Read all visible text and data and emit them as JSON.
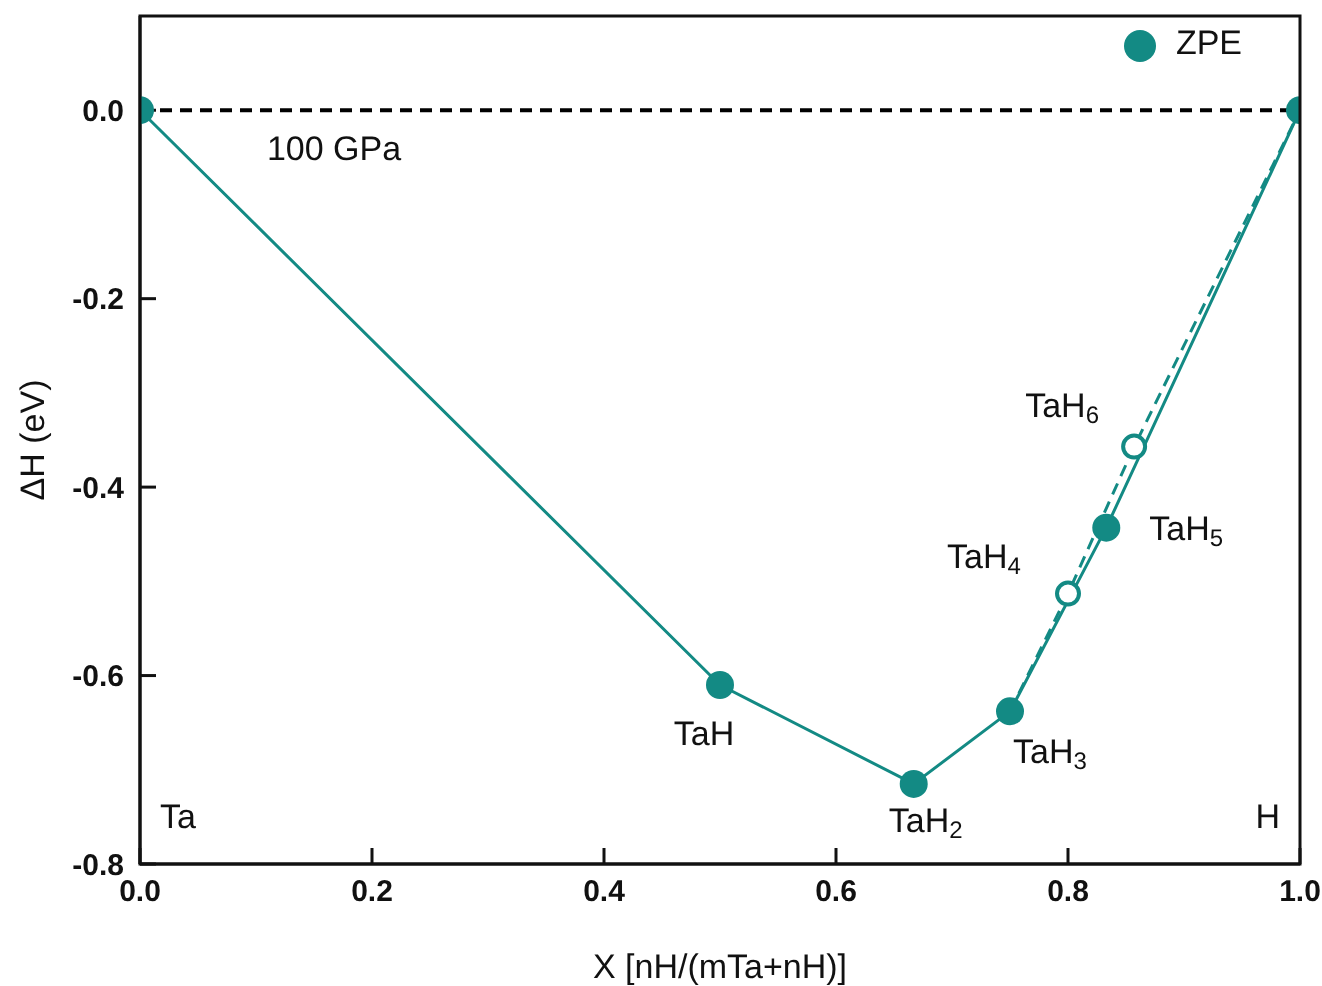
{
  "chart_data": {
    "type": "line",
    "xlabel": "X [nH/(mTa+nH)]",
    "ylabel": "ΔH (eV)",
    "series": [
      {
        "name": "ZPE",
        "color": "#138a84",
        "x": [
          0,
          0.5,
          0.667,
          0.75,
          0.833,
          1
        ],
        "values": [
          0,
          -0.61,
          -0.715,
          -0.638,
          -0.443,
          0
        ],
        "marker": "circle",
        "line_style": "solid"
      },
      {
        "color": "#138a84",
        "x": [
          0.75,
          0.8,
          0.857,
          1
        ],
        "values": [
          -0.638,
          -0.513,
          -0.357,
          0
        ],
        "marker": "circle",
        "line_style": "dashed"
      }
    ],
    "xlim": [
      0,
      1
    ],
    "xticks": [
      {
        "value": 0,
        "label": "0.0"
      },
      0.2,
      0.4,
      0.6,
      0.8,
      {
        "value": 1,
        "label": "1.0"
      }
    ],
    "ylim": [
      -0.8,
      0.1
    ],
    "yticks": [
      -0.8,
      -0.6,
      -0.4,
      -0.2,
      {
        "value": 0,
        "label": "0.0"
      }
    ],
    "ref_lines": [
      {
        "axis": "y",
        "value": 0,
        "color": "#000000",
        "line_style": "dashed"
      }
    ],
    "annotations": [
      "100 GPa",
      "Ta",
      "H",
      {
        "text": "TaH",
        "x": 0.5,
        "y": -0.61
      },
      {
        "text": "TaH$_{2}$",
        "x": 0.667,
        "y": -0.715
      },
      {
        "text": "TaH$_{3}$",
        "x": 0.75,
        "y": -0.638
      },
      {
        "text": "TaH$_{4}$",
        "x": 0.8,
        "y": -0.513
      },
      {
        "text": "TaH$_{5}$",
        "x": 0.833,
        "y": -0.443
      },
      {
        "text": "TaH$_{6}$",
        "x": 0.857,
        "y": -0.357
      }
    ],
    "legend": "top right",
    "grid": false
  }
}
